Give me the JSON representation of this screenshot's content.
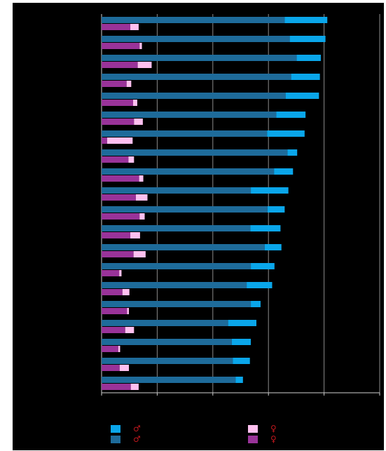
{
  "chart_data": {
    "type": "bar",
    "orientation": "horizontal",
    "stacked": true,
    "grid": true,
    "xlim": [
      0,
      600
    ],
    "ylabels": [],
    "groups": 20,
    "series": [
      {
        "key": "male_dark",
        "color": "#1e6b9a",
        "values": [
          395,
          406,
          421,
          409,
          397,
          377,
          357,
          401,
          372,
          322,
          358,
          321,
          352,
          322,
          313,
          322,
          273,
          281,
          283,
          289
        ]
      },
      {
        "key": "male_light",
        "color": "#0aa6ea",
        "values": [
          92,
          77,
          52,
          62,
          72,
          63,
          81,
          21,
          41,
          81,
          37,
          65,
          36,
          51,
          55,
          21,
          61,
          41,
          37,
          16
        ]
      },
      {
        "key": "female_dark",
        "color": "#993399",
        "values": [
          62,
          82,
          78,
          54,
          68,
          70,
          12,
          58,
          81,
          74,
          82,
          62,
          69,
          38,
          45,
          55,
          51,
          36,
          39,
          63
        ]
      },
      {
        "key": "female_light",
        "color": "#ffc0f0",
        "values": [
          18,
          5,
          30,
          10,
          9,
          19,
          55,
          12,
          9,
          25,
          11,
          21,
          26,
          5,
          15,
          4,
          19,
          4,
          20,
          17
        ]
      }
    ]
  },
  "legend": {
    "items": [
      {
        "series": "male_light",
        "color": "#0aa6ea",
        "symbol": "♂"
      },
      {
        "series": "male_dark",
        "color": "#1e6b9a",
        "symbol": "♂"
      },
      {
        "series": "female_light",
        "color": "#ffc0f0",
        "symbol": "♀"
      },
      {
        "series": "female_dark",
        "color": "#993399",
        "symbol": "♀"
      }
    ]
  }
}
